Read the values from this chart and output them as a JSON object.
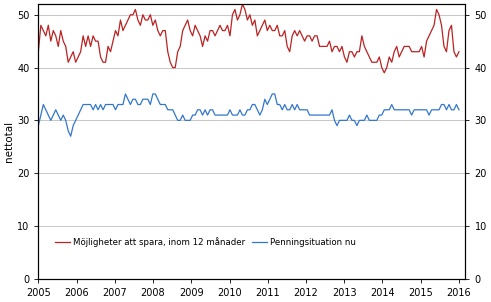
{
  "title": "",
  "ylabel_left": "nettotal",
  "xlim": [
    2005.0,
    2016.17
  ],
  "ylim": [
    0,
    52
  ],
  "yticks": [
    0,
    10,
    20,
    30,
    40,
    50
  ],
  "xticks": [
    2005,
    2006,
    2007,
    2008,
    2009,
    2010,
    2011,
    2012,
    2013,
    2014,
    2015,
    2016
  ],
  "grid_color": "#b0b0b0",
  "line1_color": "#bb2222",
  "line2_color": "#3377cc",
  "legend1": "Möjligheter att spara, inom 12 månader",
  "legend2": "Penningsituation nu",
  "red_data": [
    43,
    48,
    47,
    46,
    48,
    45,
    47,
    46,
    44,
    47,
    45,
    44,
    41,
    42,
    43,
    41,
    42,
    43,
    46,
    44,
    46,
    44,
    46,
    45,
    45,
    42,
    41,
    41,
    44,
    43,
    45,
    47,
    46,
    49,
    47,
    48,
    49,
    50,
    50,
    51,
    49,
    48,
    50,
    49,
    49,
    50,
    48,
    49,
    47,
    46,
    47,
    47,
    43,
    41,
    40,
    40,
    43,
    44,
    47,
    48,
    49,
    47,
    46,
    48,
    47,
    46,
    44,
    46,
    45,
    47,
    47,
    46,
    47,
    48,
    47,
    47,
    48,
    46,
    50,
    51,
    49,
    50,
    52,
    51,
    49,
    50,
    48,
    49,
    46,
    47,
    48,
    49,
    47,
    48,
    47,
    47,
    48,
    46,
    46,
    47,
    44,
    43,
    46,
    47,
    46,
    47,
    46,
    45,
    46,
    46,
    45,
    46,
    46,
    44,
    44,
    44,
    44,
    45,
    43,
    44,
    44,
    43,
    44,
    42,
    41,
    43,
    43,
    42,
    43,
    43,
    46,
    44,
    43,
    42,
    41,
    41,
    41,
    42,
    40,
    39,
    40,
    42,
    41,
    43,
    44,
    42,
    43,
    44,
    44,
    44,
    43,
    43,
    43,
    43,
    44,
    42,
    45,
    46,
    47,
    48,
    51,
    50,
    48,
    44,
    43,
    47,
    48,
    43,
    42,
    43
  ],
  "blue_data": [
    29,
    31,
    33,
    32,
    31,
    30,
    31,
    32,
    31,
    30,
    31,
    30,
    28,
    27,
    29,
    30,
    31,
    32,
    33,
    33,
    33,
    33,
    32,
    33,
    32,
    33,
    32,
    33,
    33,
    33,
    33,
    32,
    33,
    33,
    33,
    35,
    34,
    33,
    34,
    34,
    33,
    33,
    34,
    34,
    34,
    33,
    35,
    35,
    34,
    33,
    33,
    33,
    32,
    32,
    32,
    31,
    30,
    30,
    31,
    30,
    30,
    30,
    31,
    31,
    32,
    32,
    31,
    32,
    31,
    32,
    32,
    31,
    31,
    31,
    31,
    31,
    31,
    32,
    31,
    31,
    31,
    32,
    31,
    31,
    32,
    32,
    33,
    33,
    32,
    31,
    32,
    34,
    33,
    34,
    35,
    35,
    33,
    33,
    32,
    33,
    32,
    32,
    33,
    32,
    33,
    32,
    32,
    32,
    32,
    31,
    31,
    31,
    31,
    31,
    31,
    31,
    31,
    31,
    32,
    30,
    29,
    30,
    30,
    30,
    30,
    31,
    30,
    30,
    29,
    30,
    30,
    30,
    31,
    30,
    30,
    30,
    30,
    31,
    31,
    32,
    32,
    32,
    33,
    32,
    32,
    32,
    32,
    32,
    32,
    32,
    31,
    32,
    32,
    32,
    32,
    32,
    32,
    31,
    32,
    32,
    32,
    32,
    33,
    33,
    32,
    33,
    32,
    32,
    33,
    32
  ]
}
